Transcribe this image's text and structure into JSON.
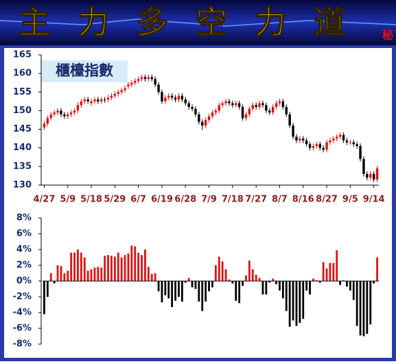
{
  "header": {
    "title": "主力多空力道",
    "badge": "秘"
  },
  "chart_data": [
    {
      "type": "candlestick",
      "title": "櫃檯指數",
      "categories": [
        "4/27",
        null,
        null,
        null,
        null,
        null,
        null,
        "5/9",
        null,
        null,
        null,
        null,
        null,
        null,
        "5/18",
        null,
        null,
        null,
        null,
        null,
        null,
        "5/29",
        null,
        null,
        null,
        null,
        null,
        null,
        "6/7",
        null,
        null,
        null,
        null,
        null,
        null,
        "6/19",
        null,
        null,
        null,
        null,
        null,
        null,
        "6/28",
        null,
        null,
        null,
        null,
        null,
        null,
        "7/9",
        null,
        null,
        null,
        null,
        null,
        null,
        "7/18",
        null,
        null,
        null,
        null,
        null,
        null,
        "7/27",
        null,
        null,
        null,
        null,
        null,
        null,
        "8/7",
        null,
        null,
        null,
        null,
        null,
        null,
        "8/16",
        null,
        null,
        null,
        null,
        null,
        null,
        "8/27",
        null,
        null,
        null,
        null,
        null,
        null,
        "9/5",
        null,
        null,
        null,
        null,
        null,
        null,
        "9/14",
        null
      ],
      "open": [
        145.5,
        146.5,
        148,
        149,
        149.5,
        150,
        149,
        148.5,
        149,
        149.5,
        150,
        151.5,
        152.5,
        153,
        152,
        152.5,
        153,
        152.5,
        153,
        153,
        153.5,
        154,
        154.5,
        155,
        155.5,
        156.5,
        157,
        157.5,
        158,
        158.5,
        159,
        158.5,
        159,
        158.5,
        157,
        155,
        152.5,
        153.5,
        154,
        153.5,
        153,
        154,
        153,
        152,
        151,
        150.5,
        149,
        147,
        146,
        147.5,
        148.5,
        149.5,
        150,
        151.5,
        152,
        152.5,
        152,
        151.5,
        152,
        151,
        148,
        149,
        150.5,
        151.5,
        151,
        152,
        151.5,
        150,
        149.5,
        151,
        152,
        152.5,
        151,
        149,
        146,
        143,
        142,
        142.5,
        142,
        141,
        140,
        140.5,
        141,
        140,
        139.5,
        141.5,
        142,
        142.5,
        143,
        143.5,
        142,
        141.5,
        141.5,
        141,
        140.5,
        137,
        133,
        132,
        133,
        131.5
      ],
      "high": [
        147.2,
        148.7,
        149.7,
        150.2,
        150.7,
        150.7,
        149.7,
        149.7,
        150.2,
        150.7,
        152.2,
        153.2,
        153.7,
        153.7,
        153.2,
        153.7,
        153.7,
        153.7,
        153.7,
        154.2,
        154.7,
        155.2,
        155.7,
        156.2,
        156.7,
        157.7,
        158.2,
        158.7,
        159.2,
        159.7,
        159.7,
        159.7,
        159.7,
        159.2,
        157.7,
        155.7,
        154.2,
        154.7,
        154.7,
        154.2,
        154.7,
        154.7,
        153.7,
        152.7,
        151.7,
        151.2,
        149.7,
        147.7,
        148.2,
        149.2,
        150.2,
        150.7,
        152.2,
        152.7,
        153.2,
        153.2,
        152.7,
        152.7,
        152.7,
        151.7,
        149.7,
        151.2,
        152.2,
        152.2,
        152.7,
        152.7,
        152.2,
        150.7,
        151.7,
        152.7,
        153.2,
        153.2,
        151.7,
        149.7,
        146.7,
        143.7,
        143.2,
        143.2,
        142.7,
        141.7,
        141.2,
        141.7,
        141.7,
        140.7,
        142.2,
        142.7,
        143.2,
        143.7,
        144.2,
        144.2,
        142.7,
        142.2,
        142.2,
        141.7,
        141.2,
        137.7,
        133.7,
        133.7,
        133.7,
        135.2
      ],
      "low": [
        144.8,
        145.8,
        147.3,
        148.3,
        148.8,
        148.3,
        147.8,
        147.8,
        148.3,
        148.8,
        149.3,
        150.8,
        151.8,
        151.8,
        151.3,
        151.8,
        151.8,
        151.8,
        152.1,
        152.3,
        152.8,
        153.3,
        153.8,
        154.3,
        154.8,
        155.8,
        156.3,
        156.8,
        157.3,
        157.8,
        157.8,
        157.8,
        157.8,
        156.3,
        154.3,
        151.8,
        151.8,
        152.8,
        152.8,
        152.3,
        152.3,
        152.3,
        151.3,
        150.3,
        149.8,
        148.3,
        146.3,
        144.8,
        145.3,
        146.8,
        147.8,
        148.8,
        149.3,
        150.8,
        151.3,
        151.3,
        150.8,
        150.8,
        150.3,
        147.3,
        147.3,
        148.3,
        149.8,
        150.3,
        150.3,
        150.8,
        149.3,
        148.8,
        148.8,
        150.3,
        151.3,
        150.3,
        148.3,
        145.3,
        142.3,
        141.3,
        141.3,
        141.3,
        140.3,
        139.3,
        139.3,
        139.8,
        139.3,
        138.8,
        138.8,
        140.8,
        141.3,
        141.8,
        142.3,
        141.3,
        140.8,
        140.8,
        140.3,
        139.8,
        136.3,
        132.3,
        131.3,
        131.3,
        130.8,
        130.8
      ],
      "close": [
        146.5,
        148,
        149,
        149.5,
        150,
        149,
        148.5,
        149,
        149.5,
        150,
        151.5,
        152.5,
        153,
        152.5,
        152.5,
        153,
        152.5,
        153,
        152.8,
        153.5,
        154,
        154.5,
        155,
        155.5,
        156,
        157,
        157.5,
        158,
        158.5,
        159,
        158.5,
        159,
        158.5,
        157,
        155,
        152.5,
        153.5,
        154,
        153.5,
        153,
        154,
        153,
        152,
        151,
        150.5,
        149,
        147,
        146,
        147.5,
        148.5,
        149.5,
        150,
        151.5,
        152,
        152.5,
        152,
        151.5,
        152,
        151,
        148,
        149,
        150.5,
        151.5,
        151,
        152,
        151.5,
        150,
        149.5,
        151,
        152,
        152.5,
        151,
        149,
        146,
        143,
        142,
        142.5,
        142,
        141,
        140,
        140.5,
        141,
        140,
        139.5,
        141.5,
        142,
        142.5,
        143,
        143.5,
        142,
        141.5,
        141.5,
        141,
        140.5,
        137,
        133,
        132,
        133,
        131.5,
        134.5
      ],
      "up_color": "#e01010",
      "down_color": "#000000",
      "ylim": [
        130,
        165
      ],
      "yticks": [
        130,
        135,
        140,
        145,
        150,
        155,
        160,
        165
      ]
    },
    {
      "type": "bar",
      "values": [
        -4.2,
        -2,
        1,
        -0.3,
        2,
        1.9,
        1,
        1.3,
        3.6,
        3.6,
        4,
        3.6,
        3,
        1.3,
        1.5,
        1.7,
        1.8,
        1.7,
        3.2,
        3.3,
        3.2,
        3.1,
        3.6,
        3,
        3.3,
        3.5,
        4.5,
        4.4,
        3.6,
        3.3,
        4,
        1.8,
        0.9,
        1,
        -1.3,
        -2.7,
        -1.8,
        -2.2,
        -3.3,
        -2.5,
        -2,
        -2.6,
        -0.2,
        0.4,
        -0.8,
        -1,
        -2.6,
        -3.8,
        -2.6,
        -1.3,
        -0.8,
        2,
        3.1,
        2.5,
        1.5,
        0.2,
        -0.3,
        -2.5,
        -2.8,
        -0.6,
        0.7,
        2.6,
        1.5,
        0.8,
        0.4,
        -1.7,
        -1.7,
        -0.2,
        0.3,
        -0.4,
        -1.2,
        -2.2,
        -3.8,
        -5.8,
        -5,
        -5.7,
        -5.3,
        -4.8,
        -1.2,
        -1.7,
        0.3,
        0.1,
        -0.2,
        2.4,
        1.6,
        2.3,
        2.3,
        3.9,
        -0.5,
        0.1,
        -0.7,
        -1.2,
        -2.4,
        -5.7,
        -6.9,
        -7,
        -6.7,
        -5.5,
        -0.3,
        3
      ],
      "up_color": "#e01010",
      "down_color": "#000000",
      "ylim": [
        -8,
        8
      ],
      "yticks": [
        {
          "value": -8,
          "label": "-8%"
        },
        {
          "value": -6,
          "label": "-6%"
        },
        {
          "value": -4,
          "label": "-4%"
        },
        {
          "value": -2,
          "label": "-2%"
        },
        {
          "value": 0,
          "label": "0%"
        },
        {
          "value": 2,
          "label": "2%"
        },
        {
          "value": 4,
          "label": "4%"
        },
        {
          "value": 6,
          "label": "6%"
        },
        {
          "value": 8,
          "label": "8%"
        }
      ]
    }
  ]
}
